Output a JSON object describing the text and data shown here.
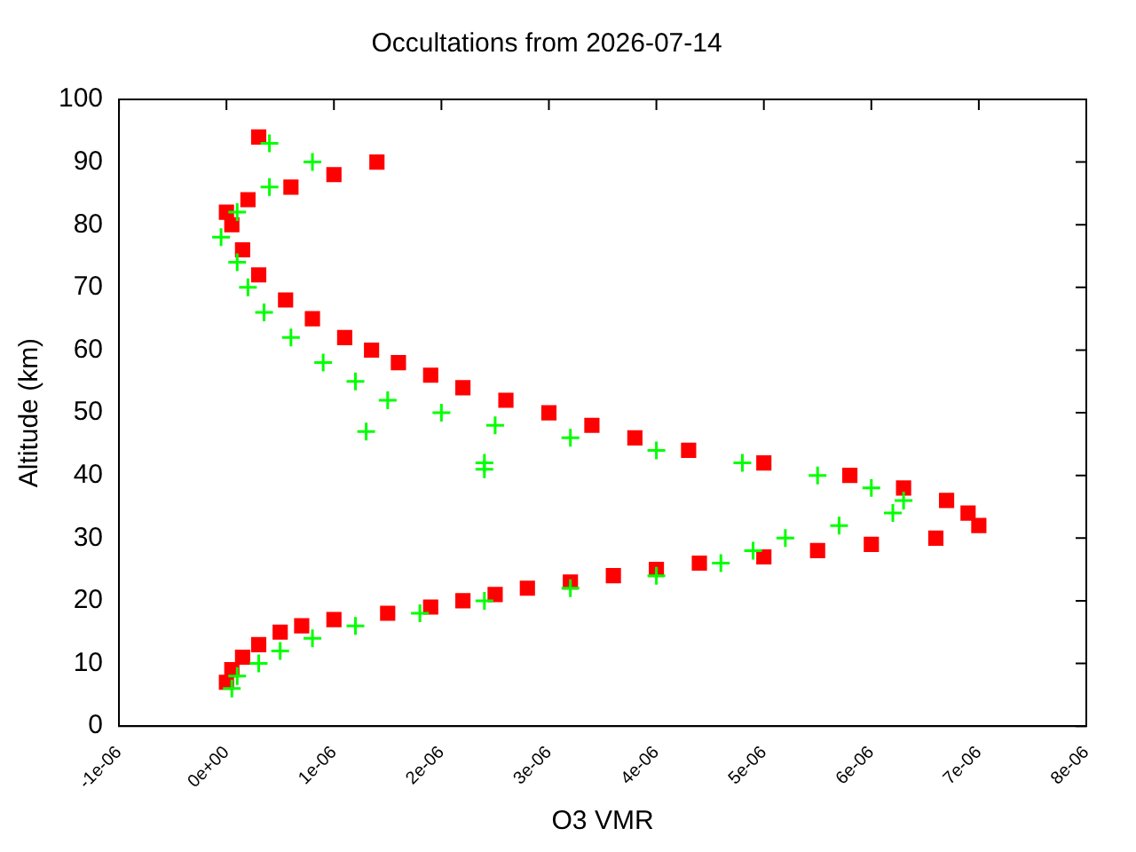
{
  "chart_data": {
    "type": "scatter",
    "title": "Occultations from 2026-07-14",
    "xlabel": "O3 VMR",
    "ylabel": "Altitude (km)",
    "xlim": [
      -1e-06,
      8e-06
    ],
    "xticks": [
      {
        "value": -1e-06,
        "label": "-1e-06"
      },
      {
        "value": 0,
        "label": "0e+00"
      },
      {
        "value": 1e-06,
        "label": "1e-06"
      },
      {
        "value": 2e-06,
        "label": "2e-06"
      },
      {
        "value": 3e-06,
        "label": "3e-06"
      },
      {
        "value": 4e-06,
        "label": "4e-06"
      },
      {
        "value": 5e-06,
        "label": "5e-06"
      },
      {
        "value": 6e-06,
        "label": "6e-06"
      },
      {
        "value": 7e-06,
        "label": "7e-06"
      },
      {
        "value": 8e-06,
        "label": "8e-06"
      }
    ],
    "ylim": [
      0,
      100
    ],
    "yticks": [
      0,
      10,
      20,
      30,
      40,
      50,
      60,
      70,
      80,
      90,
      100
    ],
    "grid": false,
    "legend": false,
    "series": [
      {
        "color": "#00ff00",
        "marker": "cross",
        "x": [
          4e-07,
          8e-07,
          4e-07,
          1e-07,
          -5e-08,
          1e-07,
          2e-07,
          3.5e-07,
          6e-07,
          9e-07,
          1.2e-06,
          1.5e-06,
          1.3e-06,
          2.4e-06,
          2e-06,
          2.5e-06,
          3.2e-06,
          2.4e-06,
          4e-06,
          4.8e-06,
          5.5e-06,
          6e-06,
          6.3e-06,
          6.2e-06,
          5.7e-06,
          5.2e-06,
          4.9e-06,
          4.6e-06,
          4e-06,
          3.2e-06,
          2.4e-06,
          1.8e-06,
          1.2e-06,
          8e-07,
          5e-07,
          3e-07,
          1e-07,
          5e-08
        ],
        "values": [
          93,
          90,
          86,
          82,
          78,
          74,
          70,
          66,
          62,
          58,
          55,
          52,
          47,
          41,
          50,
          48,
          46,
          42,
          44,
          42,
          40,
          38,
          36,
          34,
          32,
          30,
          28,
          26,
          24,
          22,
          20,
          18,
          16,
          14,
          12,
          10,
          8,
          6
        ]
      },
      {
        "color": "#ff0000",
        "marker": "square",
        "x": [
          3e-07,
          1.4e-06,
          1e-06,
          6e-07,
          2e-07,
          0,
          5e-08,
          1.5e-07,
          3e-07,
          5.5e-07,
          8e-07,
          1.1e-06,
          1.35e-06,
          1.6e-06,
          1.9e-06,
          2.2e-06,
          2.6e-06,
          3e-06,
          3.4e-06,
          3.8e-06,
          4.3e-06,
          5e-06,
          5.8e-06,
          6.3e-06,
          6.7e-06,
          6.9e-06,
          7e-06,
          6.6e-06,
          6e-06,
          5.5e-06,
          5e-06,
          4.4e-06,
          4e-06,
          3.6e-06,
          3.2e-06,
          2.8e-06,
          2.5e-06,
          2.2e-06,
          1.9e-06,
          1.5e-06,
          1e-06,
          7e-07,
          5e-07,
          3e-07,
          1.5e-07,
          5e-08,
          0
        ],
        "values": [
          94,
          90,
          88,
          86,
          84,
          82,
          80,
          76,
          72,
          68,
          65,
          62,
          60,
          58,
          56,
          54,
          52,
          50,
          48,
          46,
          44,
          42,
          40,
          38,
          36,
          34,
          32,
          30,
          29,
          28,
          27,
          26,
          25,
          24,
          23,
          22,
          21,
          20,
          19,
          18,
          17,
          16,
          15,
          13,
          11,
          9,
          7
        ]
      }
    ]
  }
}
